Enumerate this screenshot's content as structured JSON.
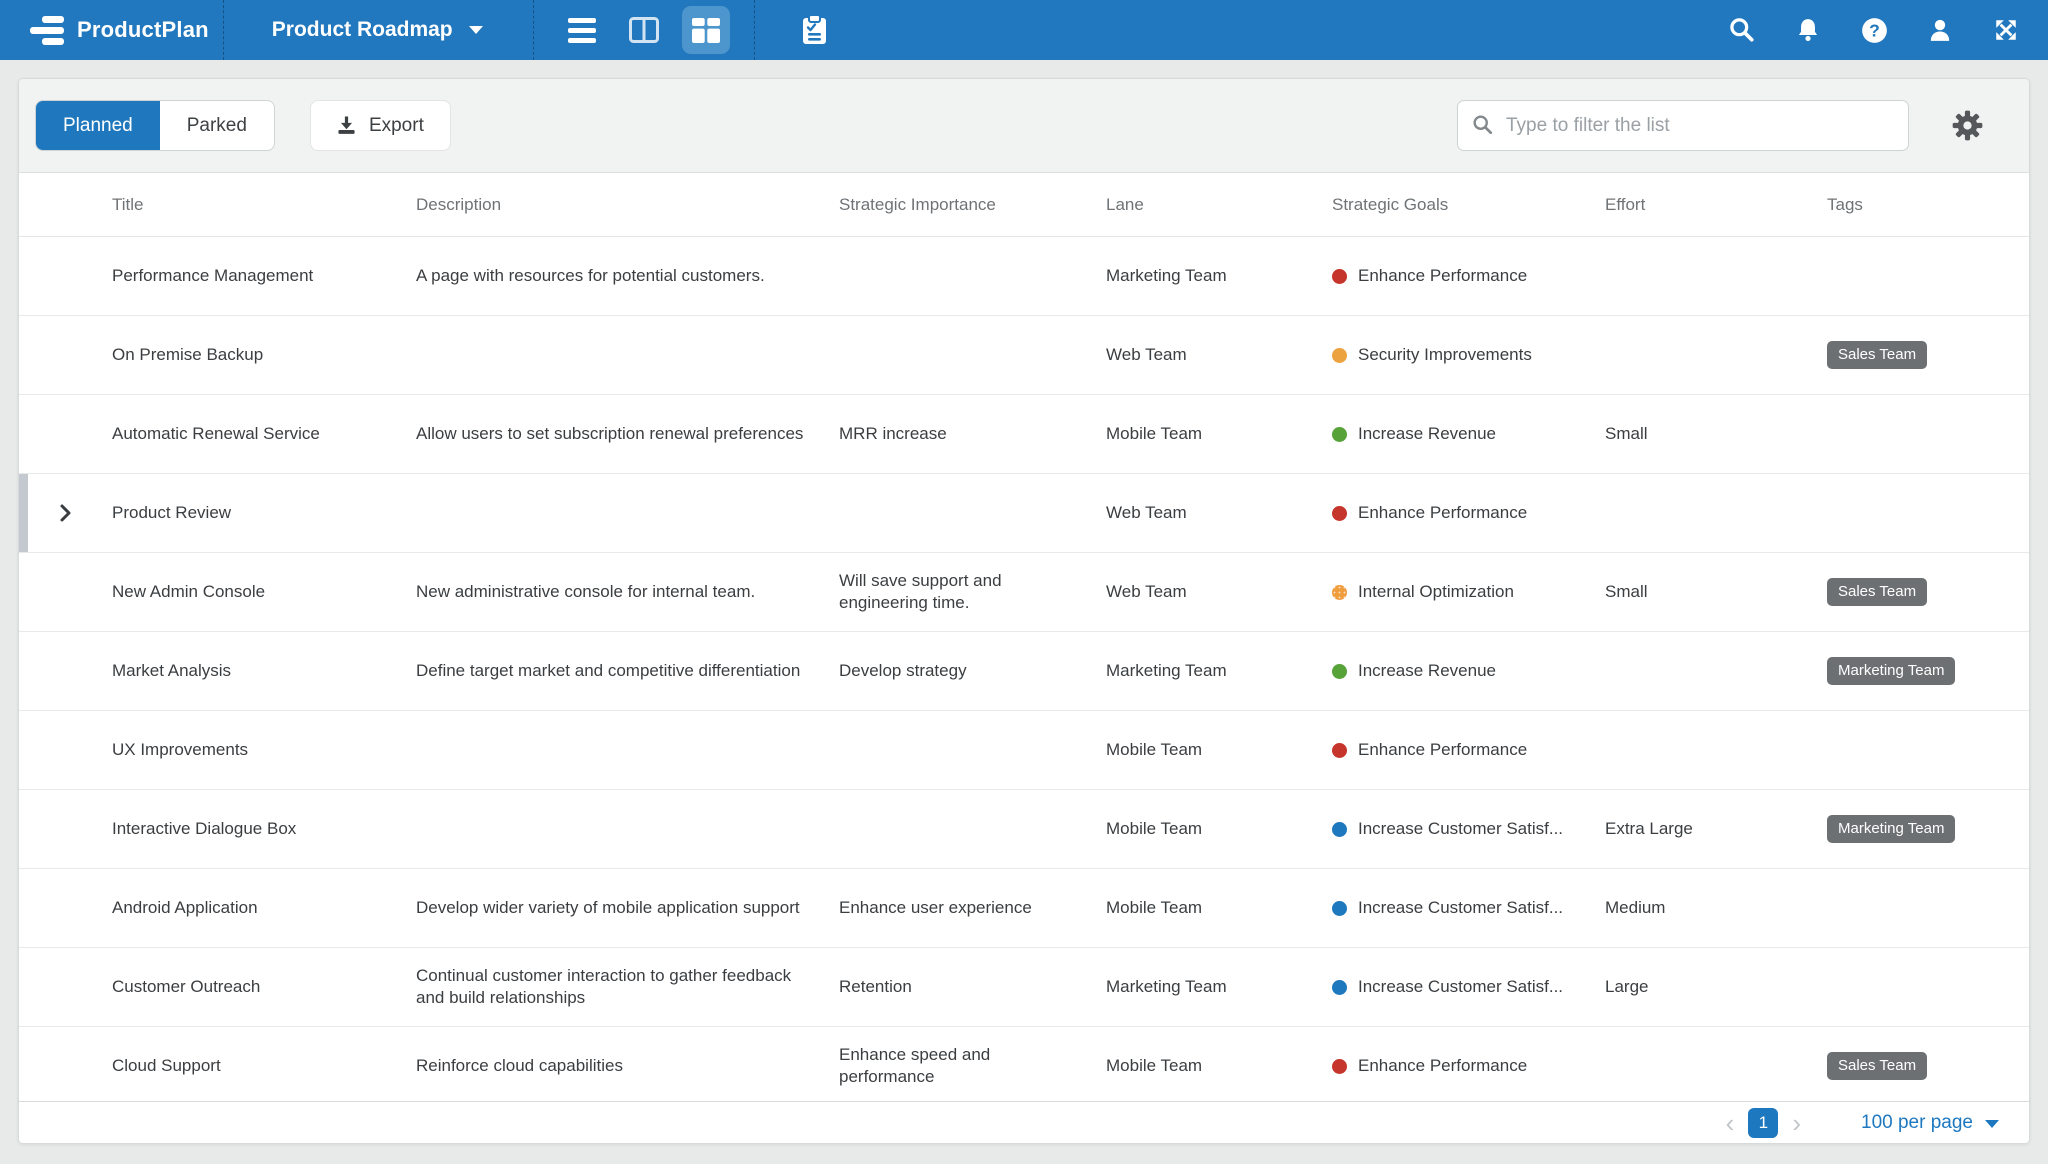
{
  "navbar": {
    "brand": "ProductPlan",
    "roadmap_selector": {
      "label": "Product Roadmap",
      "icon": "chevron-down-icon"
    },
    "view_switcher": [
      {
        "name": "list-view-icon",
        "active": false
      },
      {
        "name": "columns-view-icon",
        "active": false
      },
      {
        "name": "table-view-icon",
        "active": true
      }
    ],
    "planning_icon": "clipboard-icon",
    "right_icons": [
      "search-icon",
      "bell-icon",
      "help-icon",
      "user-icon",
      "expand-icon"
    ]
  },
  "toolbar": {
    "planned_label": "Planned",
    "parked_label": "Parked",
    "export_label": "Export",
    "export_icon": "download-icon",
    "filter_placeholder": "Type to filter the list",
    "settings_icon": "gear-icon"
  },
  "table": {
    "columns": [
      "Title",
      "Description",
      "Strategic Importance",
      "Lane",
      "Strategic Goals",
      "Effort",
      "Tags"
    ],
    "rows": [
      {
        "title": "Performance Management",
        "description": "A page with resources for potential customers.",
        "importance": "",
        "lane": "Marketing Team",
        "goal": {
          "label": "Enhance Performance",
          "color": "#c5352c",
          "pattern": "solid"
        },
        "effort": "",
        "tags": [],
        "expandable": false,
        "selected": false
      },
      {
        "title": "On Premise Backup",
        "description": "",
        "importance": "",
        "lane": "Web Team",
        "goal": {
          "label": "Security Improvements",
          "color": "#eca33f",
          "pattern": "solid"
        },
        "effort": "",
        "tags": [
          "Sales Team"
        ],
        "expandable": false,
        "selected": false
      },
      {
        "title": "Automatic Renewal Service",
        "description": "Allow users to set subscription renewal preferences",
        "importance": "MRR increase",
        "lane": "Mobile Team",
        "goal": {
          "label": "Increase Revenue",
          "color": "#58a23a",
          "pattern": "solid"
        },
        "effort": "Small",
        "tags": [],
        "expandable": false,
        "selected": false
      },
      {
        "title": "Product Review",
        "description": "",
        "importance": "",
        "lane": "Web Team",
        "goal": {
          "label": "Enhance Performance",
          "color": "#c5352c",
          "pattern": "solid"
        },
        "effort": "",
        "tags": [],
        "expandable": true,
        "selected": true
      },
      {
        "title": "New Admin Console",
        "description": "New administrative console for internal team.",
        "importance": "Will save support and engineering time.",
        "lane": "Web Team",
        "goal": {
          "label": "Internal Optimization",
          "color": "#f09d3e",
          "pattern": "dotted"
        },
        "effort": "Small",
        "tags": [
          "Sales Team"
        ],
        "expandable": false,
        "selected": false
      },
      {
        "title": "Market Analysis",
        "description": "Define target market and competitive differentiation",
        "importance": "Develop strategy",
        "lane": "Marketing Team",
        "goal": {
          "label": "Increase Revenue",
          "color": "#58a23a",
          "pattern": "solid"
        },
        "effort": "",
        "tags": [
          "Marketing Team"
        ],
        "expandable": false,
        "selected": false
      },
      {
        "title": "UX Improvements",
        "description": "",
        "importance": "",
        "lane": "Mobile Team",
        "goal": {
          "label": "Enhance Performance",
          "color": "#c5352c",
          "pattern": "solid"
        },
        "effort": "",
        "tags": [],
        "expandable": false,
        "selected": false
      },
      {
        "title": "Interactive Dialogue Box",
        "description": "",
        "importance": "",
        "lane": "Mobile Team",
        "goal": {
          "label": "Increase Customer Satisf...",
          "color": "#1e78be",
          "pattern": "solid"
        },
        "effort": "Extra Large",
        "tags": [
          "Marketing Team"
        ],
        "expandable": false,
        "selected": false
      },
      {
        "title": "Android Application",
        "description": "Develop wider variety of mobile application support",
        "importance": "Enhance user experience",
        "lane": "Mobile Team",
        "goal": {
          "label": "Increase Customer Satisf...",
          "color": "#1e78be",
          "pattern": "solid"
        },
        "effort": "Medium",
        "tags": [],
        "expandable": false,
        "selected": false
      },
      {
        "title": "Customer Outreach",
        "description": "Continual customer interaction to gather feedback and build relationships",
        "importance": "Retention",
        "lane": "Marketing Team",
        "goal": {
          "label": "Increase Customer Satisf...",
          "color": "#1e78be",
          "pattern": "solid"
        },
        "effort": "Large",
        "tags": [],
        "expandable": false,
        "selected": false
      },
      {
        "title": "Cloud Support",
        "description": "Reinforce cloud capabilities",
        "importance": "Enhance speed and performance",
        "lane": "Mobile Team",
        "goal": {
          "label": "Enhance Performance",
          "color": "#c5352c",
          "pattern": "solid"
        },
        "effort": "",
        "tags": [
          "Sales Team"
        ],
        "expandable": false,
        "selected": false
      }
    ]
  },
  "footer": {
    "prev": "‹",
    "page": "1",
    "next": "›",
    "per_page": "100 per page"
  },
  "colors": {
    "navbar_blue": "#2278be",
    "accent_blue": "#1e78c0",
    "goal_red": "#c5352c",
    "goal_orange": "#eca33f",
    "goal_green": "#58a23a",
    "goal_blue": "#1e78be",
    "tag_bg": "#6c7072",
    "selected_row_bar": "#c3c9ce"
  }
}
